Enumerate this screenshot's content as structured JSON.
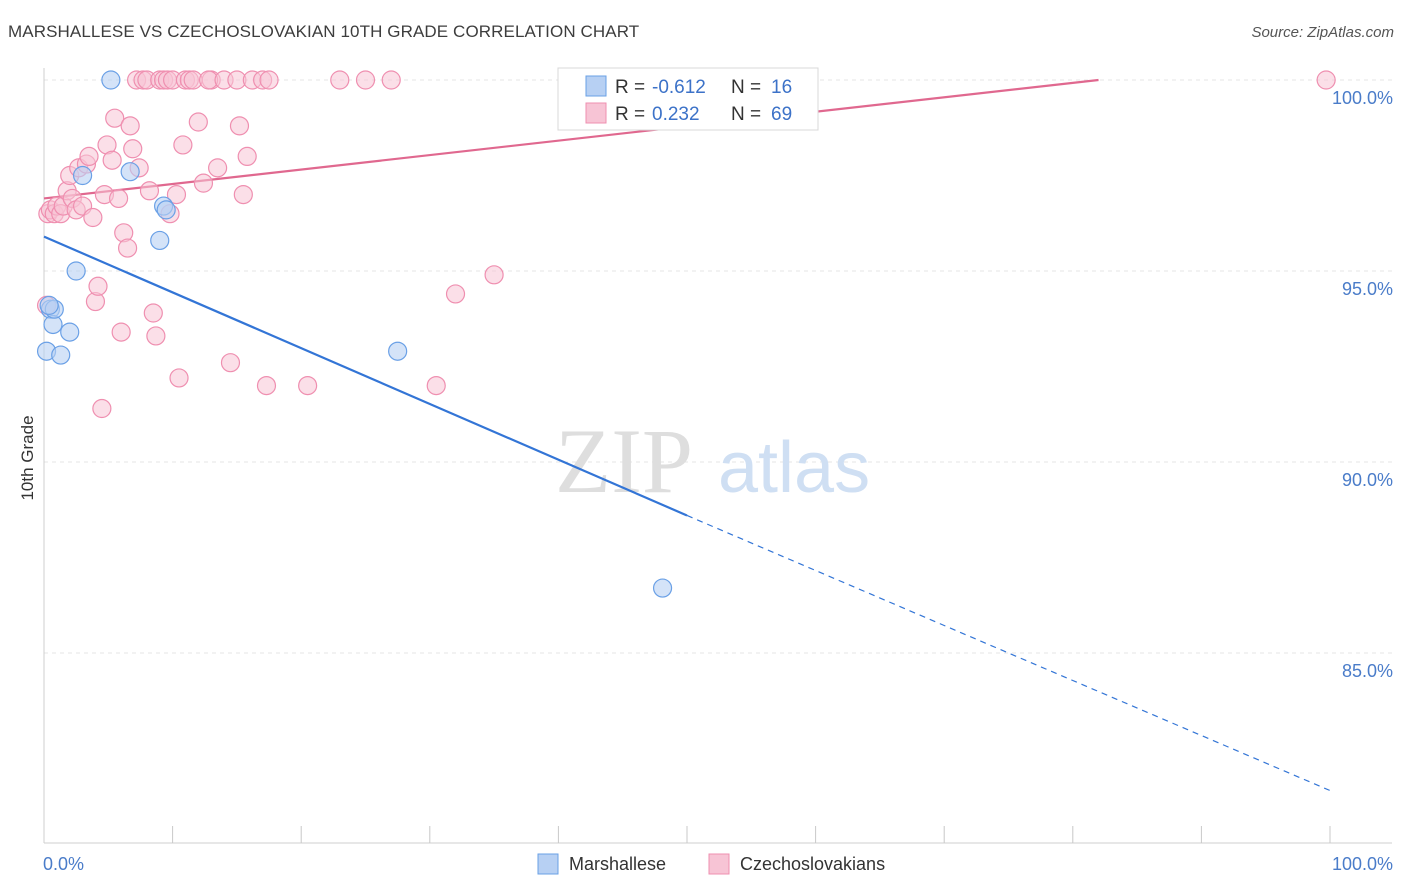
{
  "header": {
    "title": "MARSHALLESE VS CZECHOSLOVAKIAN 10TH GRADE CORRELATION CHART",
    "source": "Source: ZipAtlas.com"
  },
  "watermark": {
    "part1": "ZIP",
    "part2": "atlas"
  },
  "colors": {
    "blue": "#6aa0e6",
    "blue_fill": "#b7d0f3",
    "blue_line": "#3375d6",
    "pink": "#ef8fb0",
    "pink_fill": "#f7c4d5",
    "pink_line": "#e0688f",
    "tick_text": "#4a7cc9",
    "grid": "#e4e4e4"
  },
  "chart_data": {
    "type": "scatter",
    "title": "MARSHALLESE VS CZECHOSLOVAKIAN 10TH GRADE CORRELATION CHART",
    "xlabel": "",
    "ylabel": "10th Grade",
    "xlim": [
      0,
      100
    ],
    "ylim": [
      80.8,
      100.8
    ],
    "x_tick_labels": [
      "0.0%",
      "100.0%"
    ],
    "y_ticks": [
      100,
      95,
      90,
      85
    ],
    "y_tick_labels": [
      "100.0%",
      "95.0%",
      "90.0%",
      "85.0%"
    ],
    "grid": true,
    "legend_position": "bottom-center",
    "stats": [
      {
        "r_label": "R = ",
        "r_value": "-0.612",
        "n_label": "N = ",
        "n_value": "16"
      },
      {
        "r_label": "R = ",
        "r_value": "0.232",
        "n_label": "N = ",
        "n_value": "69"
      }
    ],
    "series": [
      {
        "name": "Marshallese",
        "trend": {
          "x0": 0,
          "y0": 95.9,
          "x1": 50,
          "y1": 88.6,
          "dash_to_x": 100,
          "dash_to_y": 81.4
        },
        "points": [
          [
            0.2,
            92.9
          ],
          [
            0.5,
            94.0
          ],
          [
            0.7,
            93.6
          ],
          [
            0.8,
            94.0
          ],
          [
            1.3,
            92.8
          ],
          [
            2.0,
            93.4
          ],
          [
            2.5,
            95.0
          ],
          [
            3.0,
            97.5
          ],
          [
            5.2,
            100.0
          ],
          [
            6.7,
            97.6
          ],
          [
            9.0,
            95.8
          ],
          [
            9.3,
            96.7
          ],
          [
            9.5,
            96.6
          ],
          [
            27.5,
            92.9
          ],
          [
            48.1,
            86.7
          ],
          [
            0.4,
            94.1
          ]
        ]
      },
      {
        "name": "Czechoslovakians",
        "trend": {
          "x0": 0,
          "y0": 96.9,
          "x1": 82,
          "y1": 100.0
        },
        "points": [
          [
            0.2,
            94.1
          ],
          [
            0.3,
            96.5
          ],
          [
            0.5,
            96.6
          ],
          [
            0.8,
            96.5
          ],
          [
            1.0,
            96.7
          ],
          [
            1.3,
            96.5
          ],
          [
            1.5,
            96.7
          ],
          [
            1.8,
            97.1
          ],
          [
            2.0,
            97.5
          ],
          [
            2.2,
            96.9
          ],
          [
            2.5,
            96.6
          ],
          [
            2.7,
            97.7
          ],
          [
            3.0,
            96.7
          ],
          [
            3.3,
            97.8
          ],
          [
            3.5,
            98.0
          ],
          [
            3.8,
            96.4
          ],
          [
            4.0,
            94.2
          ],
          [
            4.2,
            94.6
          ],
          [
            4.5,
            91.4
          ],
          [
            4.7,
            97.0
          ],
          [
            4.9,
            98.3
          ],
          [
            5.3,
            97.9
          ],
          [
            5.5,
            99.0
          ],
          [
            5.8,
            96.9
          ],
          [
            6.0,
            93.4
          ],
          [
            6.2,
            96.0
          ],
          [
            6.5,
            95.6
          ],
          [
            6.7,
            98.8
          ],
          [
            6.9,
            98.2
          ],
          [
            7.2,
            100.0
          ],
          [
            7.4,
            97.7
          ],
          [
            7.7,
            100.0
          ],
          [
            8.0,
            100.0
          ],
          [
            8.2,
            97.1
          ],
          [
            8.5,
            93.9
          ],
          [
            8.7,
            93.3
          ],
          [
            9.0,
            100.0
          ],
          [
            9.3,
            100.0
          ],
          [
            9.6,
            100.0
          ],
          [
            9.8,
            96.5
          ],
          [
            10.0,
            100.0
          ],
          [
            10.3,
            97.0
          ],
          [
            10.5,
            92.2
          ],
          [
            10.8,
            98.3
          ],
          [
            11.0,
            100.0
          ],
          [
            11.3,
            100.0
          ],
          [
            11.6,
            100.0
          ],
          [
            12.0,
            98.9
          ],
          [
            12.4,
            97.3
          ],
          [
            13.0,
            100.0
          ],
          [
            12.8,
            100.0
          ],
          [
            13.5,
            97.7
          ],
          [
            14.0,
            100.0
          ],
          [
            14.5,
            92.6
          ],
          [
            15.0,
            100.0
          ],
          [
            15.2,
            98.8
          ],
          [
            15.5,
            97.0
          ],
          [
            15.8,
            98.0
          ],
          [
            16.2,
            100.0
          ],
          [
            17.0,
            100.0
          ],
          [
            17.3,
            92.0
          ],
          [
            17.5,
            100.0
          ],
          [
            20.5,
            92.0
          ],
          [
            23.0,
            100.0
          ],
          [
            25.0,
            100.0
          ],
          [
            27.0,
            100.0
          ],
          [
            30.5,
            92.0
          ],
          [
            32.0,
            94.4
          ],
          [
            35.0,
            94.9
          ],
          [
            99.7,
            100.0
          ]
        ]
      }
    ]
  }
}
